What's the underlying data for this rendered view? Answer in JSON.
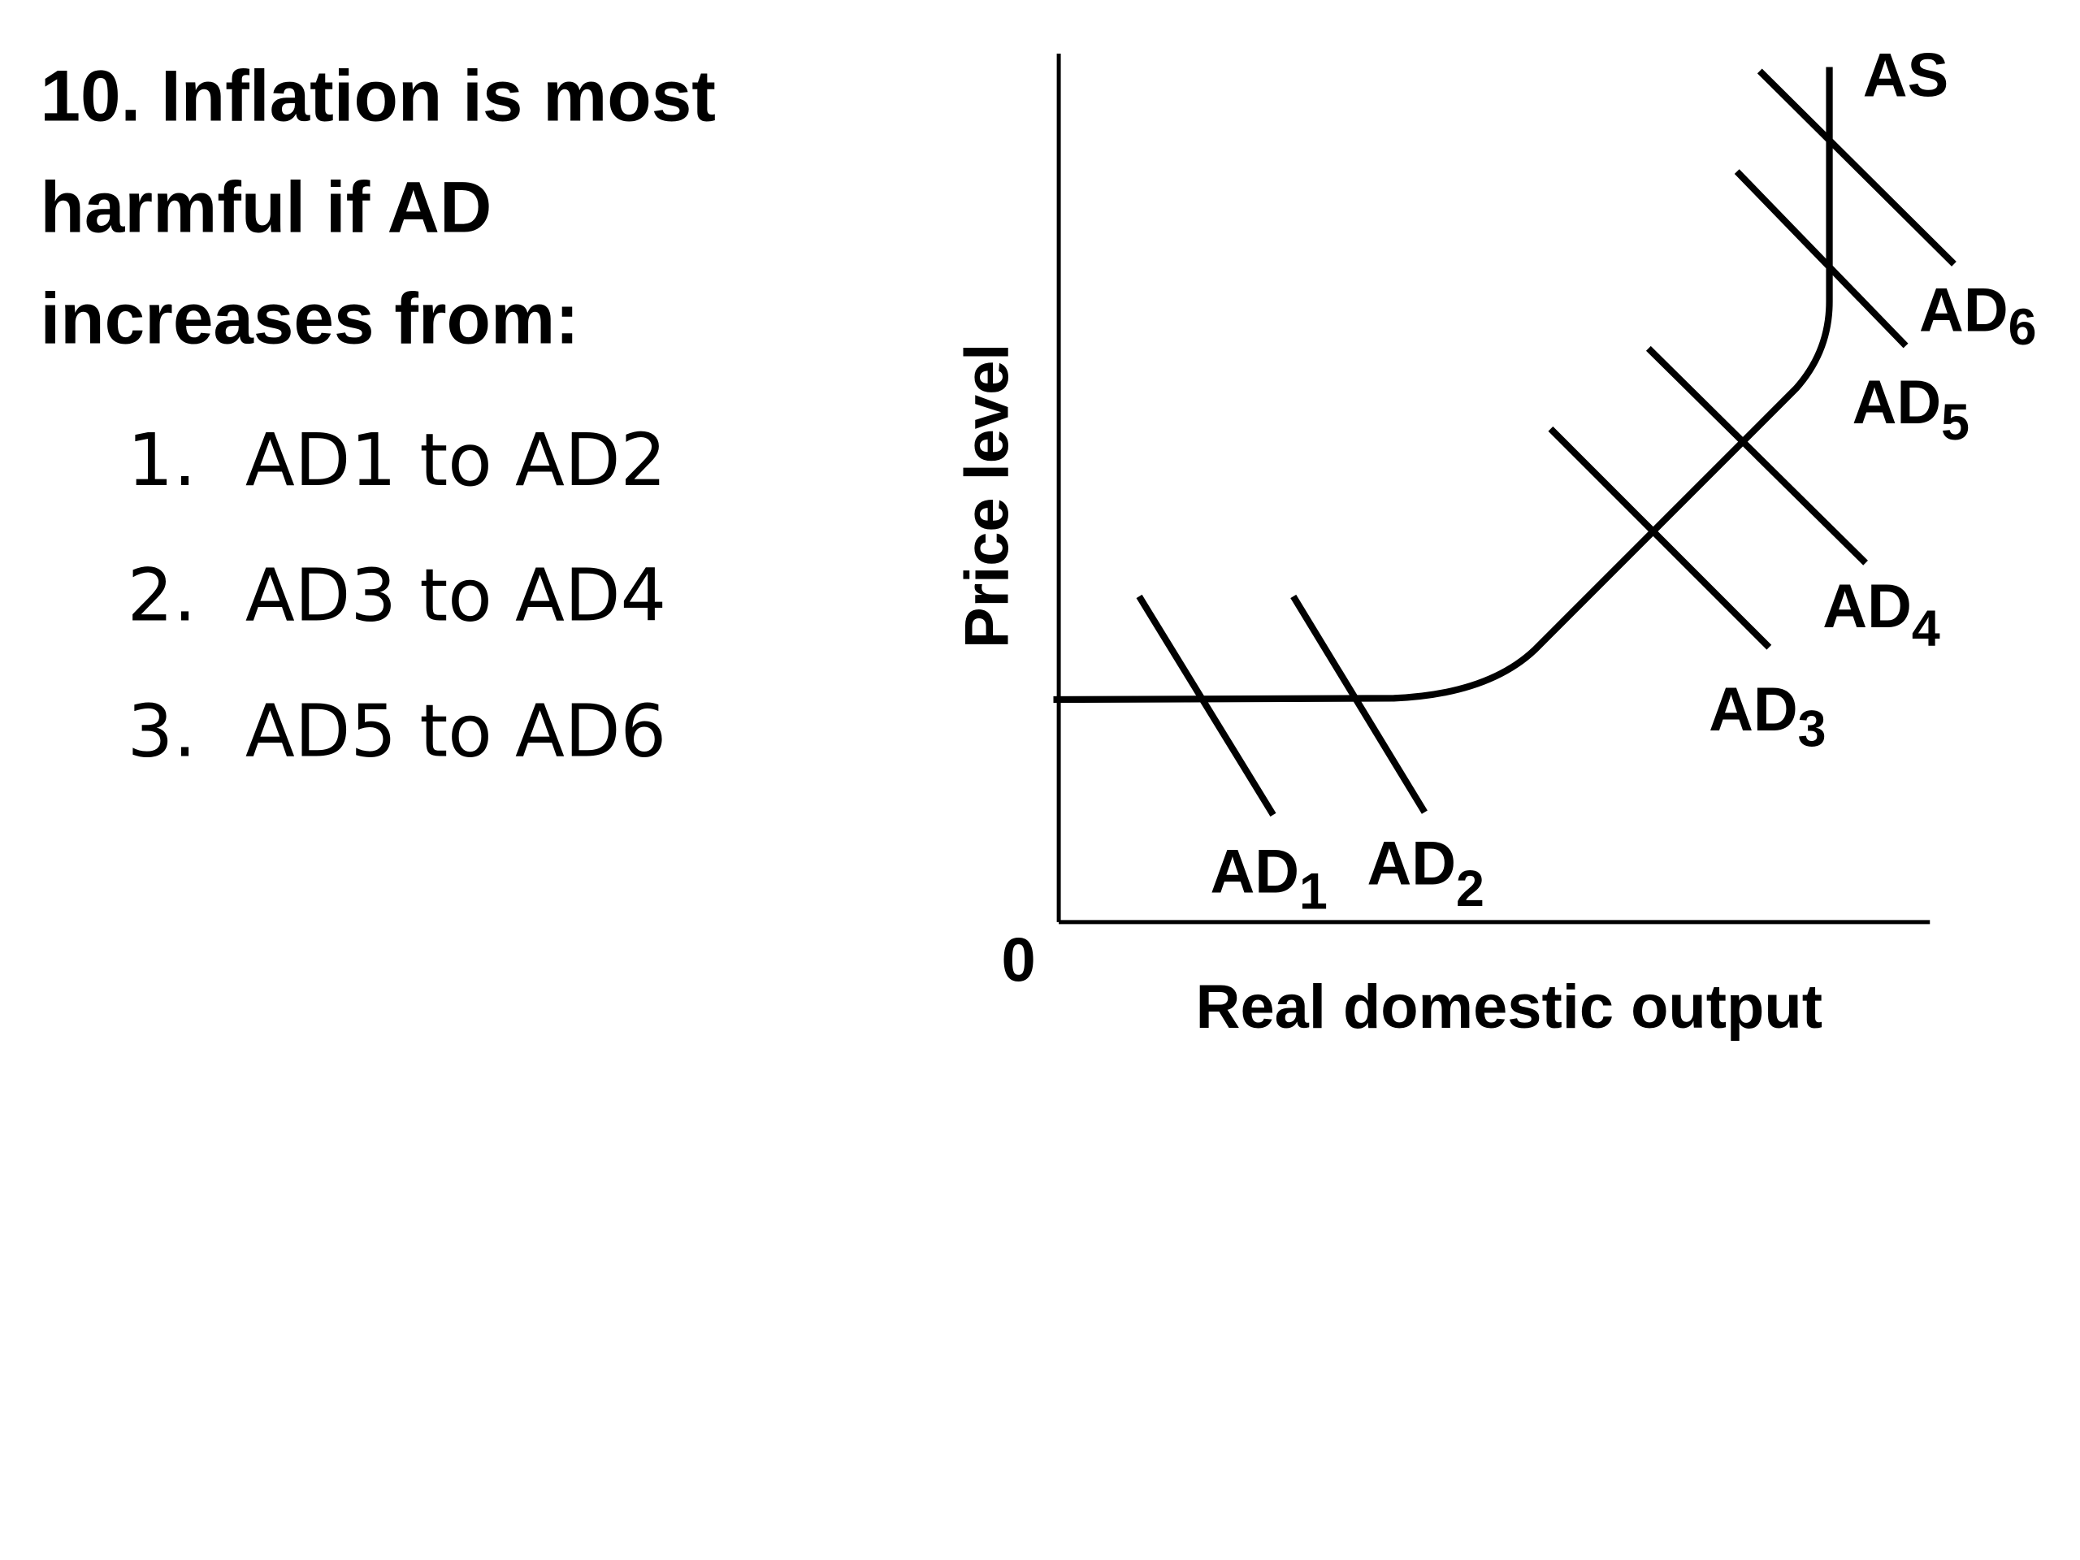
{
  "question": {
    "lines": [
      "10. Inflation is most",
      "harmful if AD",
      "increases from:"
    ],
    "options": [
      {
        "number": "1.",
        "text": "AD1 to AD2"
      },
      {
        "number": "2.",
        "text": "AD3 to AD4"
      },
      {
        "number": "3.",
        "text": "AD5 to AD6"
      }
    ]
  },
  "diagram": {
    "y_axis_label": "Price level",
    "x_axis_label": "Real domestic output",
    "origin": "0",
    "supply_label": "AS",
    "demand_curves": [
      {
        "label": "AD",
        "subscript": "1"
      },
      {
        "label": "AD",
        "subscript": "2"
      },
      {
        "label": "AD",
        "subscript": "3"
      },
      {
        "label": "AD",
        "subscript": "4"
      },
      {
        "label": "AD",
        "subscript": "5"
      },
      {
        "label": "AD",
        "subscript": "6"
      }
    ]
  }
}
